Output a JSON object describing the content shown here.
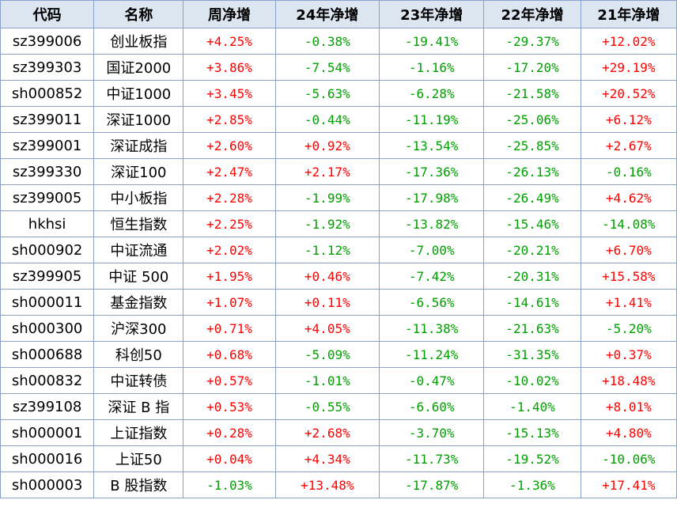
{
  "table": {
    "headers": [
      "代码",
      "名称",
      "周净增",
      "24年净增",
      "23年净增",
      "22年净增",
      "21年净增"
    ],
    "rows": [
      {
        "code": "sz399006",
        "name": "创业板指",
        "values": [
          "+4.25%",
          "-0.38%",
          "-19.41%",
          "-29.37%",
          "+12.02%"
        ]
      },
      {
        "code": "sz399303",
        "name": "国证2000",
        "values": [
          "+3.86%",
          "-7.54%",
          "-1.16%",
          "-17.20%",
          "+29.19%"
        ]
      },
      {
        "code": "sh000852",
        "name": "中证1000",
        "values": [
          "+3.45%",
          "-5.63%",
          "-6.28%",
          "-21.58%",
          "+20.52%"
        ]
      },
      {
        "code": "sz399011",
        "name": "深证1000",
        "values": [
          "+2.85%",
          "-0.44%",
          "-11.19%",
          "-25.06%",
          "+6.12%"
        ]
      },
      {
        "code": "sz399001",
        "name": "深证成指",
        "values": [
          "+2.60%",
          "+0.92%",
          "-13.54%",
          "-25.85%",
          "+2.67%"
        ]
      },
      {
        "code": "sz399330",
        "name": "深证100",
        "values": [
          "+2.47%",
          "+2.17%",
          "-17.36%",
          "-26.13%",
          "-0.16%"
        ]
      },
      {
        "code": "sz399005",
        "name": "中小板指",
        "values": [
          "+2.28%",
          "-1.99%",
          "-17.98%",
          "-26.49%",
          "+4.62%"
        ]
      },
      {
        "code": "hkhsi",
        "name": "恒生指数",
        "values": [
          "+2.25%",
          "-1.92%",
          "-13.82%",
          "-15.46%",
          "-14.08%"
        ]
      },
      {
        "code": "sh000902",
        "name": "中证流通",
        "values": [
          "+2.02%",
          "-1.12%",
          "-7.00%",
          "-20.21%",
          "+6.70%"
        ]
      },
      {
        "code": "sz399905",
        "name": "中证 500",
        "values": [
          "+1.95%",
          "+0.46%",
          "-7.42%",
          "-20.31%",
          "+15.58%"
        ]
      },
      {
        "code": "sh000011",
        "name": "基金指数",
        "values": [
          "+1.07%",
          "+0.11%",
          "-6.56%",
          "-14.61%",
          "+1.41%"
        ]
      },
      {
        "code": "sh000300",
        "name": "沪深300",
        "values": [
          "+0.71%",
          "+4.05%",
          "-11.38%",
          "-21.63%",
          "-5.20%"
        ]
      },
      {
        "code": "sh000688",
        "name": "科创50",
        "values": [
          "+0.68%",
          "-5.09%",
          "-11.24%",
          "-31.35%",
          "+0.37%"
        ]
      },
      {
        "code": "sh000832",
        "name": "中证转债",
        "values": [
          "+0.57%",
          "-1.01%",
          "-0.47%",
          "-10.02%",
          "+18.48%"
        ]
      },
      {
        "code": "sz399108",
        "name": "深证 B 指",
        "values": [
          "+0.53%",
          "-0.55%",
          "-6.60%",
          "-1.40%",
          "+8.01%"
        ]
      },
      {
        "code": "sh000001",
        "name": "上证指数",
        "values": [
          "+0.28%",
          "+2.68%",
          "-3.70%",
          "-15.13%",
          "+4.80%"
        ]
      },
      {
        "code": "sh000016",
        "name": "上证50",
        "values": [
          "+0.04%",
          "+4.34%",
          "-11.73%",
          "-19.52%",
          "-10.06%"
        ]
      },
      {
        "code": "sh000003",
        "name": "B 股指数",
        "values": [
          "-1.03%",
          "+13.48%",
          "-17.87%",
          "-1.36%",
          "+17.41%"
        ]
      }
    ]
  },
  "colors": {
    "header_bg": "#dce6f1",
    "border": "#8aa0c8",
    "positive": "#ff0000",
    "negative": "#00a000"
  }
}
